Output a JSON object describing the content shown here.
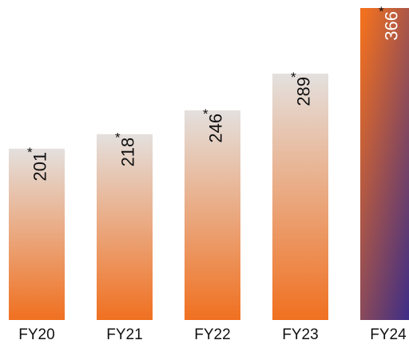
{
  "chart_data": {
    "type": "bar",
    "categories": [
      "FY20",
      "FY21",
      "FY22",
      "FY23",
      "FY24"
    ],
    "values": [
      201,
      218,
      246,
      289,
      366
    ],
    "value_labels": [
      "201",
      "218",
      "246",
      "289",
      "366"
    ],
    "marker": "*",
    "ylim": [
      0,
      366
    ],
    "title": "",
    "xlabel": "",
    "ylabel": "",
    "grid": false,
    "legend": "none",
    "colors": {
      "bar_bottom": "#F07020",
      "bar_top": "#E4E0DE",
      "highlight_top": "#F07020",
      "highlight_bottom": "#3A2C88",
      "label_dark": "#111111",
      "label_light": "#FFFFFF"
    },
    "highlight_index": 4
  }
}
